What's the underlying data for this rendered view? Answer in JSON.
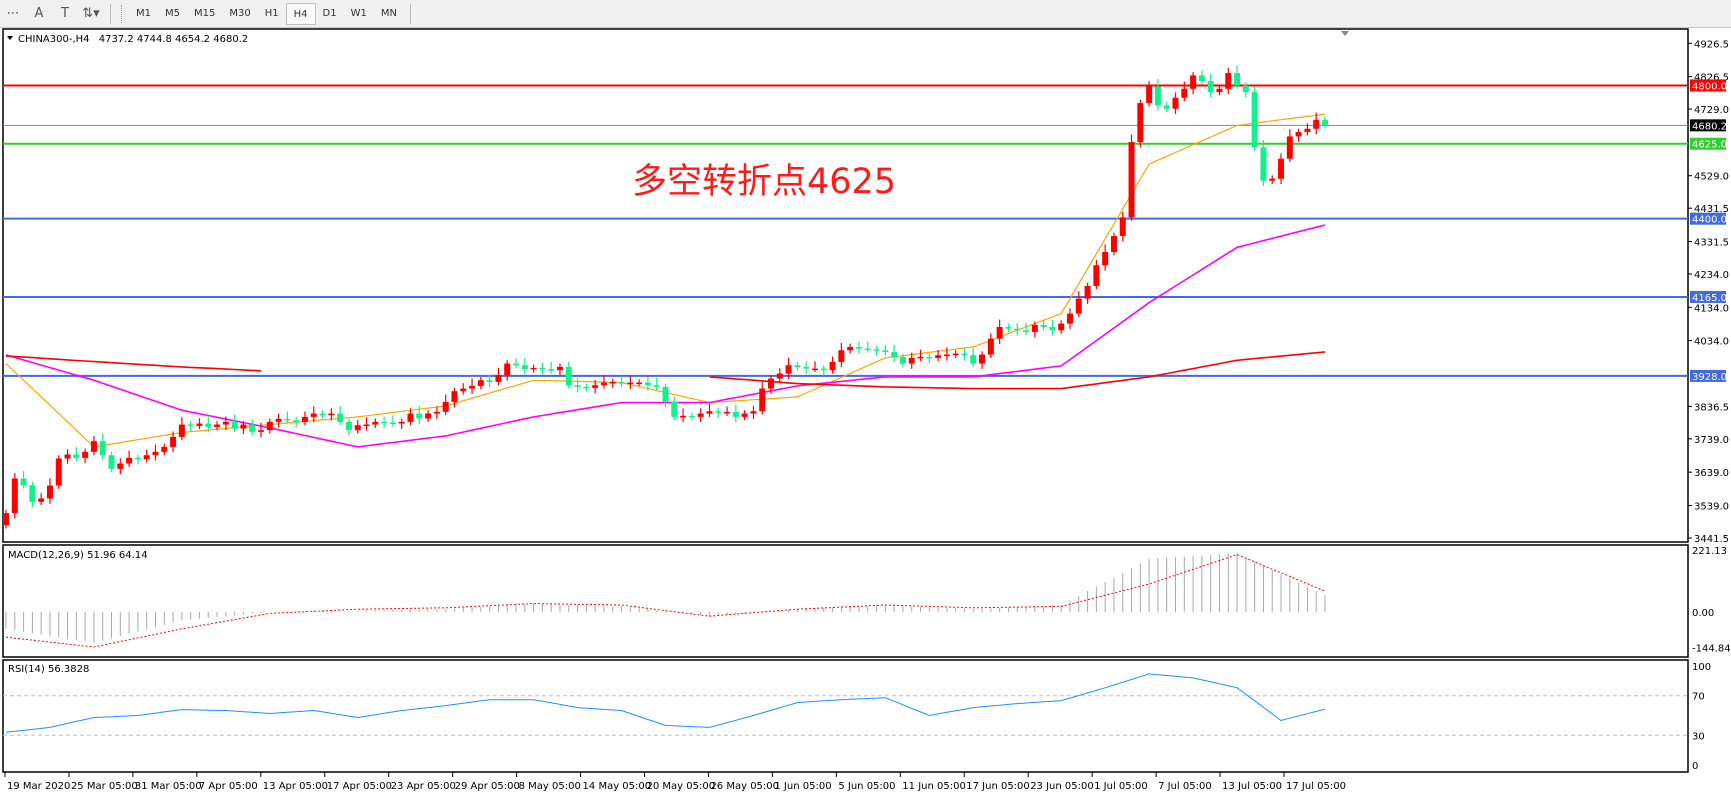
{
  "toolbar": {
    "tools": [
      {
        "icon": "fibonacci-fan-icon",
        "glyph": "⋯"
      },
      {
        "icon": "text-icon",
        "glyph": "A"
      },
      {
        "icon": "text-label-icon",
        "glyph": "T"
      },
      {
        "icon": "arrows-icon",
        "glyph": "⇅▾"
      }
    ],
    "timeframes": [
      "M1",
      "M5",
      "M15",
      "M30",
      "H1",
      "H4",
      "D1",
      "W1",
      "MN"
    ],
    "active_timeframe": "H4"
  },
  "chart_header": {
    "symbol": "CHINA300-,H4",
    "ohlc": "4737.2 4744.8 4654.2 4680.2"
  },
  "annotation": {
    "text": "多空转折点4625",
    "color": "#ff1a1a"
  },
  "colors": {
    "bull": "#ff0000",
    "bear": "#14f08c",
    "ma_fast": "#ffa500",
    "ma_mid": "#ff00ff",
    "ma_slow": "#ff0000",
    "hline_blue": "#4169e1",
    "macd_hist": "#a8a8a8",
    "macd_signal": "#ff0000",
    "rsi": "#1e90ff"
  },
  "chart_data": [
    {
      "type": "candlestick",
      "symbol": "CHINA300-",
      "timeframe": "H4",
      "ylim": [
        3441.5,
        4926.5
      ],
      "y_ticks": [
        "4926.5",
        "4826.5",
        "4729.0",
        "4529.0",
        "4431.5",
        "4331.5",
        "4234.0",
        "4134.0",
        "4034.0",
        "3836.5",
        "3739.0",
        "3639.0",
        "3539.0",
        "3441.5"
      ],
      "x_ticks": [
        "19 Mar 2020",
        "25 Mar 05:00",
        "31 Mar 05:00",
        "7 Apr 05:00",
        "13 Apr 05:00",
        "17 Apr 05:00",
        "23 Apr 05:00",
        "29 Apr 05:00",
        "8 May 05:00",
        "14 May 05:00",
        "20 May 05:00",
        "26 May 05:00",
        "1 Jun 05:00",
        "5 Jun 05:00",
        "11 Jun 05:00",
        "17 Jun 05:00",
        "23 Jun 05:00",
        "1 Jul 05:00",
        "7 Jul 05:00",
        "13 Jul 05:00",
        "17 Jul 05:00"
      ],
      "close": [
        3516,
        3620,
        3600,
        3550,
        3560,
        3599,
        3680,
        3692,
        3682,
        3700,
        3732,
        3690,
        3649,
        3665,
        3682,
        3678,
        3690,
        3700,
        3715,
        3745,
        3782,
        3778,
        3785,
        3775,
        3782,
        3790,
        3770,
        3782,
        3760,
        3765,
        3790,
        3799,
        3795,
        3790,
        3805,
        3815,
        3810,
        3815,
        3790,
        3765,
        3780,
        3782,
        3790,
        3788,
        3785,
        3790,
        3815,
        3800,
        3815,
        3820,
        3850,
        3882,
        3890,
        3898,
        3915,
        3910,
        3930,
        3965,
        3960,
        3948,
        3952,
        3948,
        3945,
        3955,
        3900,
        3895,
        3892,
        3900,
        3908,
        3910,
        3905,
        3908,
        3908,
        3900,
        3895,
        3850,
        3805,
        3808,
        3805,
        3815,
        3822,
        3818,
        3820,
        3805,
        3815,
        3822,
        3890,
        3920,
        3935,
        3960,
        3955,
        3950,
        3950,
        3945,
        3970,
        4005,
        4015,
        4010,
        4008,
        4005,
        4000,
        3985,
        3965,
        3982,
        3985,
        3982,
        3990,
        3992,
        3995,
        3990,
        3965,
        3992,
        4040,
        4075,
        4070,
        4065,
        4060,
        4081,
        4075,
        4065,
        4085,
        4115,
        4160,
        4198,
        4260,
        4300,
        4348,
        4404,
        4630,
        4747,
        4797,
        4740,
        4730,
        4763,
        4790,
        4830,
        4813,
        4780,
        4790,
        4837,
        4800,
        4780,
        4614,
        4514,
        4520,
        4580,
        4647,
        4660,
        4670,
        4697,
        4680.2
      ],
      "moving_averages_every_10_bars": {
        "fast": [
          3965,
          3715,
          3758,
          3782,
          3805,
          3838,
          3915,
          3908,
          3848,
          3865,
          3982,
          4015,
          4115,
          4564,
          4680,
          4714
        ],
        "mid": [
          3991,
          3915,
          3825,
          3772,
          3715,
          3748,
          3805,
          3848,
          3848,
          3898,
          3925,
          3925,
          3958,
          4148,
          4314,
          4381
        ],
        "slow": [
          3988,
          3971,
          3955,
          3942,
          null,
          null,
          null,
          null,
          3925,
          3905,
          3895,
          3890,
          3890,
          3925,
          3975,
          4000
        ]
      },
      "horizontal_lines": [
        {
          "price": 4800.0,
          "label": "4800.0",
          "color": "#ff0000"
        },
        {
          "price": 4680.2,
          "label": "4680.2",
          "color": "#000000",
          "line_color": "#778899"
        },
        {
          "price": 4625.0,
          "label": "4625.0",
          "color": "#32cd32"
        },
        {
          "price": 4400.0,
          "label": "4400.0",
          "color": "#4169e1"
        },
        {
          "price": 4165.0,
          "label": "4165.0",
          "color": "#4169e1"
        },
        {
          "price": 3928.0,
          "label": "3928.0",
          "color": "#4169e1"
        }
      ]
    },
    {
      "type": "bar+line",
      "title": "MACD(12,26,9) 51.96 64.14",
      "ylim": [
        -144.84,
        221.13
      ],
      "y_ticks": [
        "221.13",
        "0.00",
        "-144.84"
      ],
      "histogram_every_10_bars": [
        -60,
        -110,
        -30,
        0,
        5,
        10,
        30,
        20,
        -15,
        10,
        25,
        10,
        25,
        190,
        210,
        60
      ],
      "signal_every_10_bars": [
        -90,
        -125,
        -60,
        -5,
        10,
        15,
        30,
        25,
        -15,
        10,
        25,
        15,
        20,
        100,
        205,
        75
      ]
    },
    {
      "type": "line",
      "title": "RSI(14) 56.3828",
      "ylim": [
        0,
        100
      ],
      "y_ticks": [
        "100",
        "70",
        "30",
        "0"
      ],
      "levels": [
        70,
        30
      ],
      "rsi_every_5_bars": [
        33,
        38,
        48,
        50,
        56,
        55,
        52,
        55,
        48,
        55,
        60,
        66,
        66,
        58,
        55,
        40,
        38,
        50,
        63,
        66,
        68,
        50,
        58,
        62,
        65,
        78,
        92,
        88,
        78,
        45,
        56.38
      ]
    }
  ]
}
